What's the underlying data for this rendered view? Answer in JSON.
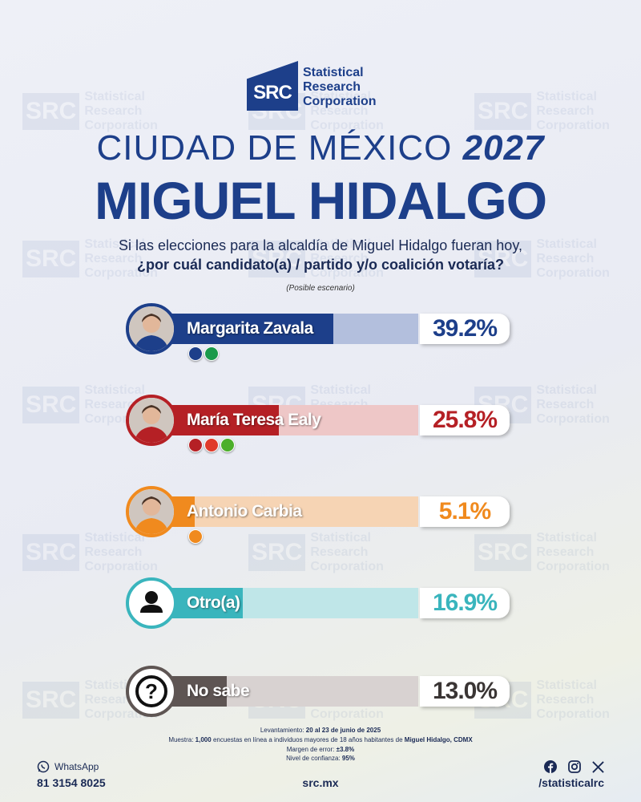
{
  "brand": {
    "logo_letters": "SRC",
    "name_lines": [
      "Statistical",
      "Research",
      "Corporation"
    ]
  },
  "header": {
    "title_line1_text": "CIUDAD DE MÉXICO",
    "title_line1_year": "2027",
    "title_line2": "MIGUEL HIDALGO",
    "question_line1": "Si las elecciones para la alcaldía de Miguel Hidalgo fueran hoy,",
    "question_line2": "¿por cuál candidato(a) / partido y/o coalición votaría?",
    "scenario_note": "(Posible escenario)"
  },
  "chart_data": {
    "type": "bar",
    "orientation": "horizontal",
    "categories": [
      "Margarita Zavala",
      "María Teresa Ealy",
      "Antonio Carbia",
      "Otro(a)",
      "No sabe"
    ],
    "values": [
      39.2,
      25.8,
      5.1,
      16.9,
      13.0
    ],
    "value_labels": [
      "39.2%",
      "25.8%",
      "5.1%",
      "16.9%",
      "13.0%"
    ],
    "unit": "%",
    "xlim": [
      0,
      60
    ],
    "colors": [
      {
        "fill": "#1d3f8a",
        "rest": "#b3bfdd",
        "border": "#1d3f8a",
        "label": "#1d3f8a"
      },
      {
        "fill": "#b52025",
        "rest": "#eec7c7",
        "border": "#b52025",
        "label": "#b52025"
      },
      {
        "fill": "#f08a1e",
        "rest": "#f6d4b4",
        "border": "#f08a1e",
        "label": "#f08a1e"
      },
      {
        "fill": "#3ab5bd",
        "rest": "#bfe6e8",
        "border": "#3ab5bd",
        "label": "#3ab5bd"
      },
      {
        "fill": "#5e5553",
        "rest": "#d8d2d1",
        "border": "#5e5553",
        "label": "#3a3534"
      }
    ],
    "parties": [
      [
        {
          "name": "PAN",
          "color": "#1d3f8a"
        },
        {
          "name": "PRI",
          "color": "#1a9a4a"
        }
      ],
      [
        {
          "name": "MORENA",
          "color": "#b52025"
        },
        {
          "name": "PT",
          "color": "#e03a2a"
        },
        {
          "name": "PVEM",
          "color": "#4caf2a"
        }
      ],
      [
        {
          "name": "MC",
          "color": "#f08a1e"
        }
      ],
      [],
      []
    ],
    "avatars": [
      "photo-icon",
      "photo-icon",
      "photo-icon",
      "user-icon",
      "question-icon"
    ]
  },
  "footer": {
    "fieldwork_label": "Levantamiento:",
    "fieldwork_value": "20 al 23 de junio de 2025",
    "sample_label": "Muestra:",
    "sample_value": "1,000",
    "sample_text": "encuestas en línea a individuos mayores de 18 años habitantes de",
    "sample_place": "Miguel Hidalgo, CDMX",
    "error_label": "Margen de error:",
    "error_value": "±3.8%",
    "confidence_label": "Nivel de confianza:",
    "confidence_value": "95%",
    "whatsapp_label": "WhatsApp",
    "whatsapp_number": "81 3154 8025",
    "website": "src.mx",
    "social_handle": "/statisticalrc"
  }
}
